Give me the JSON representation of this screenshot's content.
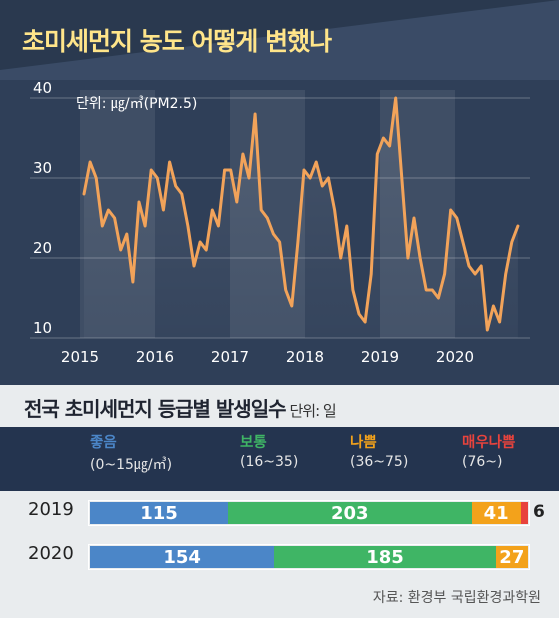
{
  "chart_title": "초미세먼지 농도 어떻게 변했나",
  "chart_unit": "단위: ㎍/㎥(PM2.5)",
  "table_title": "전국 초미세먼지 등급별 발생일수",
  "table_unit": "단위: 일",
  "source": "자료: 환경부 국립환경과학원",
  "chart_data": [
    {
      "type": "line",
      "title": "초미세먼지 농도 어떻게 변했나",
      "ylabel": "단위: ㎍/㎥(PM2.5)",
      "ylim": [
        10,
        40
      ],
      "yticks": [
        10,
        20,
        30,
        40
      ],
      "xlim": [
        2015.0,
        2021.0
      ],
      "xtick_labels": [
        "2015",
        "2016",
        "2017",
        "2018",
        "2019",
        "2020"
      ],
      "xticks": [
        2015,
        2016,
        2017,
        2018,
        2019,
        2020
      ],
      "grid": true,
      "x": [
        2015.0,
        2015.083,
        2015.167,
        2015.25,
        2015.333,
        2015.417,
        2015.5,
        2015.583,
        2015.667,
        2015.75,
        2015.833,
        2015.917,
        2016.0,
        2016.083,
        2016.167,
        2016.25,
        2016.333,
        2016.417,
        2016.5,
        2016.583,
        2016.667,
        2016.75,
        2016.833,
        2016.917,
        2017.0,
        2017.083,
        2017.167,
        2017.25,
        2017.333,
        2017.417,
        2017.5,
        2017.583,
        2017.667,
        2017.75,
        2017.833,
        2017.917,
        2018.0,
        2018.083,
        2018.167,
        2018.25,
        2018.333,
        2018.417,
        2018.5,
        2018.583,
        2018.667,
        2018.75,
        2018.833,
        2018.917,
        2019.0,
        2019.083,
        2019.167,
        2019.25,
        2019.333,
        2019.417,
        2019.5,
        2019.583,
        2019.667,
        2019.75,
        2019.833,
        2019.917,
        2020.0,
        2020.083,
        2020.167,
        2020.25,
        2020.333,
        2020.417,
        2020.5,
        2020.583,
        2020.667,
        2020.75,
        2020.833,
        2020.917
      ],
      "y": [
        28,
        32,
        30,
        24,
        26,
        25,
        21,
        23,
        17,
        27,
        24,
        31,
        30,
        26,
        32,
        29,
        28,
        24,
        19,
        22,
        21,
        26,
        24,
        31,
        31,
        27,
        33,
        30,
        38,
        26,
        25,
        23,
        22,
        16,
        14,
        22,
        31,
        30,
        32,
        29,
        30,
        26,
        20,
        24,
        16,
        13,
        12,
        18,
        33,
        35,
        34,
        40,
        30,
        20,
        25,
        20,
        16,
        16,
        15,
        18,
        26,
        25,
        22,
        19,
        18,
        19,
        11,
        14,
        12,
        18,
        22,
        24
      ],
      "year_bands": [
        "2015",
        "2017",
        "2019"
      ]
    },
    {
      "type": "bar",
      "stacked": true,
      "orientation": "horizontal",
      "title": "전국 초미세먼지 등급별 발생일수",
      "unit": "단위: 일",
      "categories": [
        "2019",
        "2020"
      ],
      "series": [
        {
          "name": "좋음",
          "range": "(0~15㎍/㎥)",
          "color": "#4b86c8",
          "values": [
            115,
            154
          ]
        },
        {
          "name": "보통",
          "range": "(16~35)",
          "color": "#3fb565",
          "values": [
            203,
            185
          ]
        },
        {
          "name": "나쁨",
          "range": "(36~75)",
          "color": "#f3a21b",
          "values": [
            41,
            27
          ]
        },
        {
          "name": "매우나쁨",
          "range": "(76~)",
          "color": "#e8433d",
          "values": [
            6,
            0
          ]
        }
      ]
    }
  ]
}
